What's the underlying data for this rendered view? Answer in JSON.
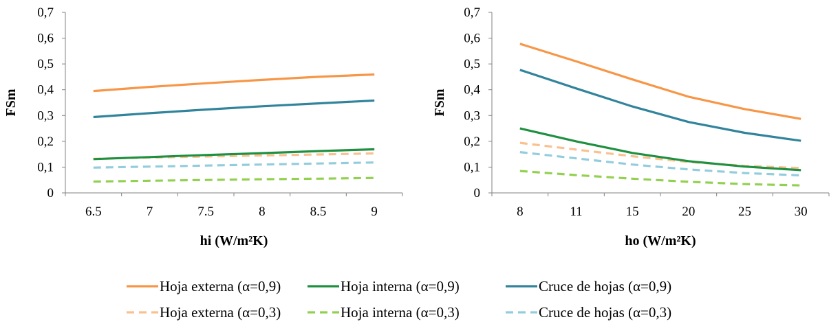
{
  "colors": {
    "hoja_externa_09": "#F79646",
    "hoja_interna_09": "#1E9040",
    "cruce_09": "#31849B",
    "hoja_externa_03": "#FAC090",
    "hoja_interna_03": "#92D050",
    "cruce_03": "#93CDDD",
    "axis": "#808080"
  },
  "chart_data": [
    {
      "type": "line",
      "xlabel": "hi (W/m²K)",
      "ylabel": "FSm",
      "categories": [
        "6.5",
        "7",
        "7.5",
        "8",
        "8.5",
        "9"
      ],
      "ylim": [
        0,
        0.7
      ],
      "yticks": [
        "0",
        "0,1",
        "0,2",
        "0,3",
        "0,4",
        "0,5",
        "0,6",
        "0,7"
      ],
      "grid": false,
      "series": [
        {
          "name": "Hoja externa (α=0,9)",
          "color": "#F79646",
          "dashed": false,
          "values": [
            0.395,
            0.411,
            0.425,
            0.438,
            0.45,
            0.459
          ]
        },
        {
          "name": "Hoja interna (α=0,9)",
          "color": "#1E9040",
          "dashed": false,
          "values": [
            0.131,
            0.139,
            0.147,
            0.154,
            0.162,
            0.169
          ]
        },
        {
          "name": "Cruce de hojas (α=0,9)",
          "color": "#31849B",
          "dashed": false,
          "values": [
            0.294,
            0.309,
            0.323,
            0.336,
            0.347,
            0.358
          ]
        },
        {
          "name": "Hoja externa (α=0,3)",
          "color": "#FAC090",
          "dashed": true,
          "values": [
            0.132,
            0.137,
            0.141,
            0.145,
            0.149,
            0.153
          ]
        },
        {
          "name": "Hoja interna (α=0,3)",
          "color": "#92D050",
          "dashed": true,
          "values": [
            0.044,
            0.047,
            0.05,
            0.053,
            0.055,
            0.058
          ]
        },
        {
          "name": "Cruce de hojas (α=0,3)",
          "color": "#93CDDD",
          "dashed": true,
          "values": [
            0.098,
            0.102,
            0.106,
            0.11,
            0.114,
            0.118
          ]
        }
      ]
    },
    {
      "type": "line",
      "xlabel": "ho (W/m²K)",
      "ylabel": "FSm",
      "categories": [
        "8",
        "11",
        "15",
        "20",
        "25",
        "30"
      ],
      "ylim": [
        0,
        0.7
      ],
      "yticks": [
        "0",
        "0,1",
        "0,2",
        "0,3",
        "0,4",
        "0,5",
        "0,6",
        "0,7"
      ],
      "grid": false,
      "series": [
        {
          "name": "Hoja externa (α=0,9)",
          "color": "#F79646",
          "dashed": false,
          "values": [
            0.578,
            0.51,
            0.44,
            0.373,
            0.325,
            0.287
          ]
        },
        {
          "name": "Hoja interna (α=0,9)",
          "color": "#1E9040",
          "dashed": false,
          "values": [
            0.25,
            0.2,
            0.155,
            0.123,
            0.102,
            0.088
          ]
        },
        {
          "name": "Cruce de hojas (α=0,9)",
          "color": "#31849B",
          "dashed": false,
          "values": [
            0.477,
            0.405,
            0.335,
            0.275,
            0.233,
            0.202
          ]
        },
        {
          "name": "Hoja externa (α=0,3)",
          "color": "#FAC090",
          "dashed": true,
          "values": [
            0.194,
            0.168,
            0.142,
            0.12,
            0.105,
            0.096
          ]
        },
        {
          "name": "Hoja interna (α=0,3)",
          "color": "#92D050",
          "dashed": true,
          "values": [
            0.085,
            0.069,
            0.055,
            0.043,
            0.034,
            0.029
          ]
        },
        {
          "name": "Cruce de hojas (α=0,3)",
          "color": "#93CDDD",
          "dashed": true,
          "values": [
            0.158,
            0.134,
            0.11,
            0.091,
            0.077,
            0.068
          ]
        }
      ]
    }
  ],
  "legend": {
    "placement": "bottom",
    "rows": [
      [
        {
          "label": "Hoja externa (α=0,9)",
          "color": "#F79646",
          "dashed": false
        },
        {
          "label": "Hoja interna (α=0,9)",
          "color": "#1E9040",
          "dashed": false
        },
        {
          "label": "Cruce de hojas (α=0,9)",
          "color": "#31849B",
          "dashed": false
        }
      ],
      [
        {
          "label": "Hoja externa (α=0,3)",
          "color": "#FAC090",
          "dashed": true
        },
        {
          "label": "Hoja interna (α=0,3)",
          "color": "#92D050",
          "dashed": true
        },
        {
          "label": "Cruce de hojas (α=0,3)",
          "color": "#93CDDD",
          "dashed": true
        }
      ]
    ]
  }
}
